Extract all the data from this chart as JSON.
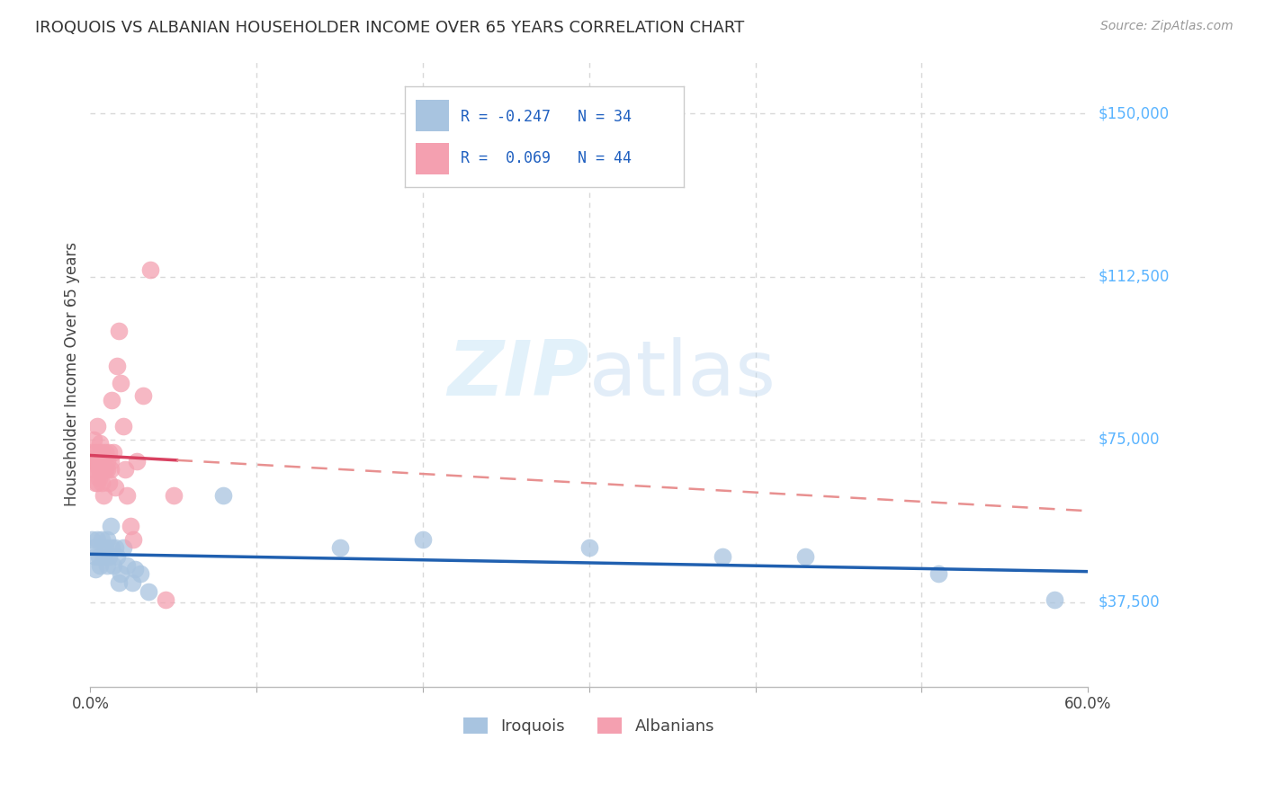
{
  "title": "IROQUOIS VS ALBANIAN HOUSEHOLDER INCOME OVER 65 YEARS CORRELATION CHART",
  "source": "Source: ZipAtlas.com",
  "ylabel": "Householder Income Over 65 years",
  "watermark": "ZIPatlas",
  "iroquois_R": -0.247,
  "iroquois_N": 34,
  "albanians_R": 0.069,
  "albanians_N": 44,
  "xlim": [
    0.0,
    0.6
  ],
  "ylim": [
    18000,
    162000
  ],
  "yticks": [
    37500,
    75000,
    112500,
    150000
  ],
  "ytick_labels": [
    "$37,500",
    "$75,000",
    "$112,500",
    "$150,000"
  ],
  "iroquois_color": "#a8c4e0",
  "albanians_color": "#f4a0b0",
  "iroquois_line_color": "#2060b0",
  "albanians_line_color": "#d84060",
  "albanians_dash_color": "#e89090",
  "grid_color": "#d8d8d8",
  "background_color": "#ffffff",
  "iroquois_x": [
    0.001,
    0.002,
    0.003,
    0.003,
    0.004,
    0.005,
    0.006,
    0.007,
    0.008,
    0.009,
    0.01,
    0.01,
    0.011,
    0.012,
    0.013,
    0.014,
    0.015,
    0.016,
    0.017,
    0.018,
    0.02,
    0.022,
    0.025,
    0.027,
    0.03,
    0.035,
    0.08,
    0.15,
    0.2,
    0.3,
    0.38,
    0.43,
    0.51,
    0.58
  ],
  "iroquois_y": [
    52000,
    50000,
    45000,
    48000,
    52000,
    48000,
    46000,
    52000,
    48000,
    50000,
    46000,
    52000,
    48000,
    55000,
    50000,
    46000,
    50000,
    48000,
    42000,
    44000,
    50000,
    46000,
    42000,
    45000,
    44000,
    40000,
    62000,
    50000,
    52000,
    50000,
    48000,
    48000,
    44000,
    38000
  ],
  "albanians_x": [
    0.001,
    0.001,
    0.002,
    0.002,
    0.003,
    0.003,
    0.003,
    0.004,
    0.004,
    0.004,
    0.005,
    0.005,
    0.005,
    0.006,
    0.006,
    0.007,
    0.007,
    0.007,
    0.008,
    0.008,
    0.009,
    0.009,
    0.01,
    0.01,
    0.011,
    0.011,
    0.012,
    0.012,
    0.013,
    0.014,
    0.015,
    0.016,
    0.017,
    0.018,
    0.02,
    0.021,
    0.022,
    0.024,
    0.026,
    0.028,
    0.032,
    0.036,
    0.045,
    0.05
  ],
  "albanians_y": [
    72000,
    68000,
    75000,
    70000,
    68000,
    72000,
    65000,
    78000,
    70000,
    65000,
    72000,
    66000,
    68000,
    74000,
    68000,
    70000,
    65000,
    72000,
    62000,
    68000,
    72000,
    68000,
    70000,
    68000,
    72000,
    65000,
    70000,
    68000,
    84000,
    72000,
    64000,
    92000,
    100000,
    88000,
    78000,
    68000,
    62000,
    55000,
    52000,
    70000,
    85000,
    114000,
    38000,
    62000
  ]
}
